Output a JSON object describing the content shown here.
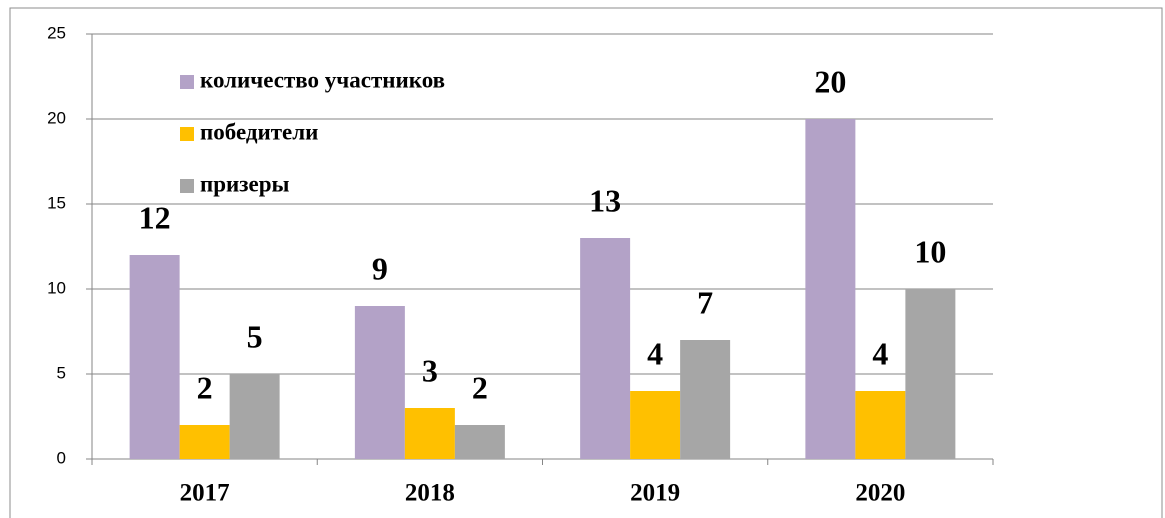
{
  "chart_data": {
    "type": "bar",
    "categories": [
      "2017",
      "2018",
      "2019",
      "2020"
    ],
    "series": [
      {
        "name": "количество участников",
        "color": "#b3a2c7",
        "values": [
          12,
          9,
          13,
          20
        ]
      },
      {
        "name": "победители",
        "color": "#ffc000",
        "values": [
          2,
          3,
          4,
          4
        ]
      },
      {
        "name": "призеры",
        "color": "#a6a6a6",
        "values": [
          5,
          2,
          7,
          10
        ]
      }
    ],
    "ylim": [
      0,
      25
    ],
    "yticks": [
      0,
      5,
      10,
      15,
      20,
      25
    ],
    "grid": true,
    "legend": "upper left"
  }
}
